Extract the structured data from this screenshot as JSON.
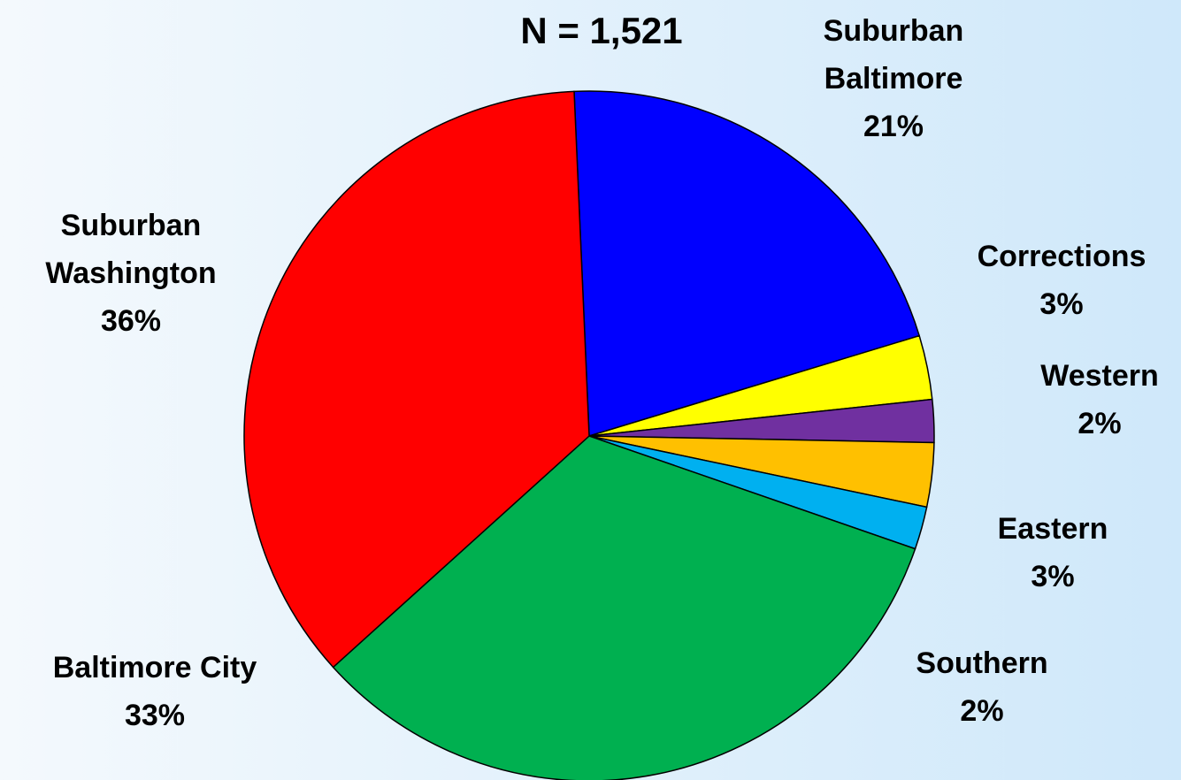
{
  "chart_data": {
    "type": "pie",
    "title": "N = 1,521",
    "categories": [
      "Suburban Baltimore",
      "Corrections",
      "Western",
      "Eastern",
      "Southern",
      "Baltimore City",
      "Suburban Washington"
    ],
    "values": [
      21,
      3,
      2,
      3,
      2,
      33,
      36
    ],
    "value_labels": [
      "21%",
      "3%",
      "2%",
      "3%",
      "2%",
      "33%",
      "36%"
    ],
    "colors": [
      "#0000ff",
      "#ffff00",
      "#7030a0",
      "#ffc000",
      "#00b0f0",
      "#00b050",
      "#ff0000"
    ]
  }
}
